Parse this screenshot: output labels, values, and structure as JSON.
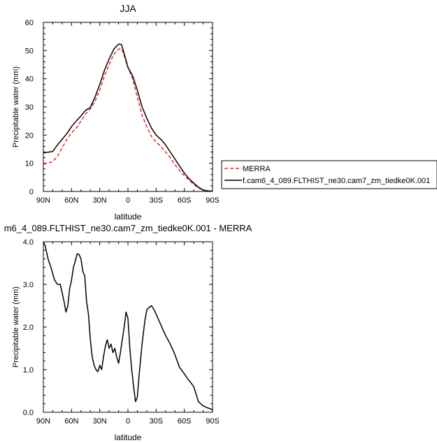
{
  "chart_data": [
    {
      "type": "line",
      "title": "JJA",
      "xlabel": "latitude",
      "ylabel": "Precipitable water (mm)",
      "xlim": [
        90,
        -90
      ],
      "ylim": [
        0,
        60
      ],
      "xticks": [
        90,
        60,
        30,
        0,
        -30,
        -60,
        -90
      ],
      "xtick_labels": [
        "90N",
        "60N",
        "30N",
        "0",
        "30S",
        "60S",
        "90S"
      ],
      "yticks": [
        0,
        10,
        20,
        30,
        40,
        50,
        60
      ],
      "ytick_labels": [
        "0",
        "10",
        "20",
        "30",
        "40",
        "50",
        "60"
      ],
      "legend_placement": "right, outside plot",
      "series": [
        {
          "name": "MERRA",
          "color": "#e8262a",
          "dash": "dashed",
          "x": [
            90,
            85,
            80,
            75,
            70,
            65,
            60,
            55,
            50,
            45,
            40,
            35,
            30,
            25,
            20,
            15,
            10,
            7,
            5,
            2,
            0,
            -5,
            -10,
            -15,
            -20,
            -25,
            -30,
            -35,
            -40,
            -45,
            -50,
            -55,
            -60,
            -65,
            -70,
            -75,
            -80,
            -85,
            -90
          ],
          "y": [
            9.7,
            10.1,
            10.6,
            12.5,
            15.5,
            18.5,
            20.8,
            22.5,
            25,
            27.5,
            29.3,
            32,
            36,
            41,
            45,
            48.7,
            50.5,
            50.6,
            49.3,
            46,
            44,
            40,
            33.5,
            27,
            23,
            19.5,
            17.5,
            16,
            14,
            12,
            9.5,
            7.5,
            5.5,
            4,
            2.5,
            1.2,
            0.5,
            0.2,
            0.1
          ]
        },
        {
          "name": "f.cam6_4_089.FLTHIST_ne30.cam7_zm_tiedke0K.001",
          "color": "#000000",
          "dash": "solid",
          "x": [
            90,
            85,
            80,
            75,
            70,
            65,
            60,
            55,
            50,
            45,
            40,
            35,
            30,
            25,
            20,
            15,
            10,
            7,
            5,
            2,
            0,
            -5,
            -10,
            -15,
            -20,
            -25,
            -30,
            -35,
            -40,
            -45,
            -50,
            -55,
            -60,
            -65,
            -70,
            -75,
            -80,
            -85,
            -90
          ],
          "y": [
            13.7,
            13.9,
            14.2,
            16.5,
            18.5,
            20.5,
            23,
            25,
            26.8,
            28.8,
            29.8,
            33.5,
            38,
            43,
            47,
            50.5,
            52.3,
            52.2,
            50,
            46.5,
            44,
            41,
            36,
            30,
            26,
            22.5,
            20,
            18.5,
            16.5,
            14,
            11.5,
            9,
            6.5,
            4.5,
            3,
            1.5,
            0.5,
            0.2,
            0.1
          ]
        }
      ]
    },
    {
      "type": "line",
      "title": "m6_4_089.FLTHIST_ne30.cam7_zm_tiedke0K.001 - MERRA",
      "xlabel": "latitude",
      "ylabel": "Precipitable water (mm)",
      "xlim": [
        90,
        -90
      ],
      "ylim": [
        0,
        4
      ],
      "xticks": [
        90,
        60,
        30,
        0,
        -30,
        -60,
        -90
      ],
      "xtick_labels": [
        "90N",
        "60N",
        "30N",
        "0",
        "30S",
        "60S",
        "90S"
      ],
      "yticks": [
        0,
        1,
        2,
        3,
        4
      ],
      "ytick_labels": [
        "0.0",
        "1.0",
        "2.0",
        "3.0",
        "4.0"
      ],
      "series": [
        {
          "color": "#000000",
          "dash": "solid",
          "x": [
            90,
            88,
            85,
            82,
            80,
            78,
            75,
            72,
            70,
            68,
            66,
            64,
            62,
            60,
            58,
            56,
            54,
            52,
            50,
            48,
            46,
            44,
            42,
            40,
            38,
            36,
            34,
            32,
            30,
            28,
            26,
            24,
            22,
            20,
            18,
            16,
            14,
            12,
            10,
            8,
            6,
            4,
            2,
            0,
            -2,
            -4,
            -6,
            -8,
            -10,
            -12,
            -15,
            -18,
            -20,
            -22,
            -25,
            -28,
            -30,
            -33,
            -36,
            -40,
            -45,
            -50,
            -55,
            -60,
            -63,
            -66,
            -70,
            -75,
            -80,
            -85,
            -88,
            -90
          ],
          "y": [
            4.0,
            3.9,
            3.6,
            3.4,
            3.25,
            3.1,
            3.0,
            3.0,
            2.8,
            2.6,
            2.35,
            2.5,
            2.9,
            3.1,
            3.4,
            3.55,
            3.72,
            3.7,
            3.6,
            3.3,
            3.2,
            2.6,
            2.3,
            1.7,
            1.3,
            1.1,
            1.0,
            0.95,
            1.1,
            1.0,
            1.3,
            1.55,
            1.7,
            1.5,
            1.6,
            1.4,
            1.5,
            1.3,
            1.15,
            1.4,
            1.7,
            2.0,
            2.35,
            2.2,
            1.5,
            1.0,
            0.6,
            0.25,
            0.35,
            0.9,
            1.6,
            2.15,
            2.4,
            2.45,
            2.5,
            2.4,
            2.3,
            2.15,
            2.0,
            1.8,
            1.6,
            1.35,
            1.05,
            0.9,
            0.8,
            0.72,
            0.6,
            0.25,
            0.15,
            0.1,
            0.08,
            0.05
          ]
        }
      ]
    }
  ]
}
